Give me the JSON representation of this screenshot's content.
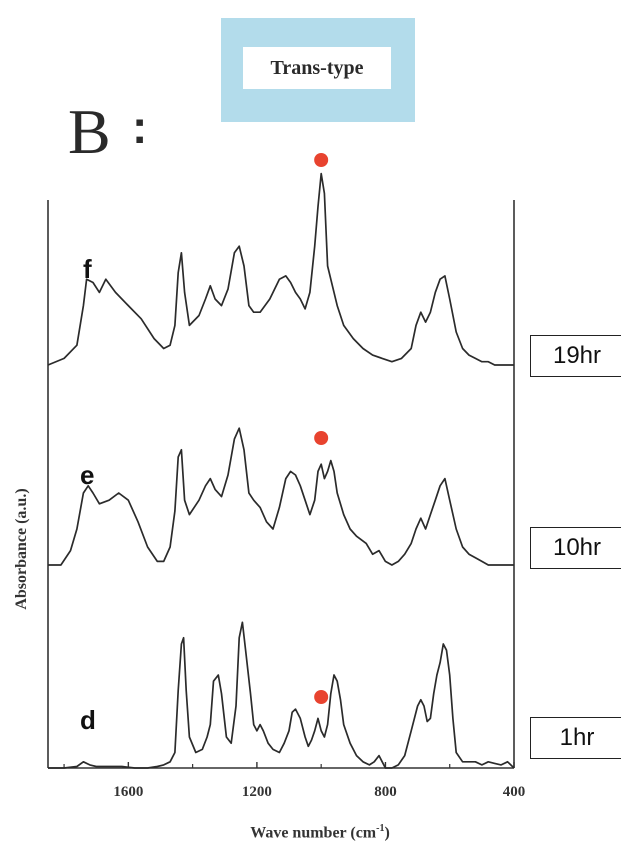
{
  "header": {
    "box_text": "Trans-type",
    "box_color": "#b3dceb",
    "panel_label": "B",
    "panel_colon": ":"
  },
  "chart_data": {
    "type": "line",
    "title": "",
    "xlabel_main": "Wave number (cm",
    "xlabel_sup": "-1",
    "xlabel_close": ")",
    "ylabel": "Absorbance (a.u.)",
    "xlim": [
      1850,
      400
    ],
    "x_reversed": true,
    "x_ticks": [
      1600,
      1200,
      800,
      400
    ],
    "x_tick_labels": [
      "1600",
      "1200",
      "800",
      "400"
    ],
    "grid": false,
    "marker_color": "#e8432f",
    "marker_x": 1000,
    "series": [
      {
        "label": "f",
        "time": "19hr",
        "x": [
          1850,
          1800,
          1760,
          1740,
          1730,
          1710,
          1690,
          1670,
          1640,
          1600,
          1560,
          1520,
          1490,
          1470,
          1455,
          1445,
          1435,
          1425,
          1410,
          1380,
          1360,
          1345,
          1330,
          1310,
          1290,
          1270,
          1255,
          1240,
          1225,
          1210,
          1190,
          1160,
          1130,
          1110,
          1095,
          1080,
          1065,
          1050,
          1035,
          1020,
          1010,
          1000,
          990,
          980,
          965,
          950,
          930,
          900,
          870,
          840,
          810,
          780,
          750,
          720,
          705,
          690,
          675,
          660,
          645,
          630,
          615,
          600,
          580,
          560,
          540,
          520,
          500,
          480,
          460,
          440,
          420,
          410,
          400
        ],
        "y": [
          0.0,
          0.02,
          0.06,
          0.18,
          0.26,
          0.25,
          0.22,
          0.26,
          0.22,
          0.18,
          0.14,
          0.08,
          0.05,
          0.06,
          0.12,
          0.28,
          0.34,
          0.22,
          0.12,
          0.15,
          0.2,
          0.24,
          0.2,
          0.18,
          0.23,
          0.34,
          0.36,
          0.3,
          0.18,
          0.16,
          0.16,
          0.2,
          0.26,
          0.27,
          0.25,
          0.22,
          0.2,
          0.17,
          0.22,
          0.36,
          0.48,
          0.58,
          0.52,
          0.3,
          0.24,
          0.18,
          0.12,
          0.08,
          0.05,
          0.03,
          0.02,
          0.01,
          0.02,
          0.05,
          0.12,
          0.16,
          0.13,
          0.16,
          0.22,
          0.26,
          0.27,
          0.2,
          0.1,
          0.05,
          0.03,
          0.02,
          0.01,
          0.01,
          0.0,
          0.0,
          0.0,
          0.0,
          0.0
        ]
      },
      {
        "label": "e",
        "time": "10hr",
        "x": [
          1850,
          1810,
          1780,
          1760,
          1740,
          1725,
          1710,
          1690,
          1660,
          1630,
          1600,
          1570,
          1540,
          1510,
          1490,
          1470,
          1455,
          1445,
          1435,
          1425,
          1410,
          1380,
          1360,
          1345,
          1330,
          1310,
          1290,
          1270,
          1255,
          1240,
          1225,
          1210,
          1190,
          1170,
          1150,
          1130,
          1110,
          1095,
          1080,
          1065,
          1050,
          1035,
          1020,
          1010,
          1000,
          990,
          980,
          970,
          960,
          950,
          930,
          910,
          890,
          860,
          840,
          820,
          800,
          780,
          760,
          740,
          720,
          705,
          690,
          675,
          660,
          645,
          630,
          615,
          600,
          580,
          560,
          540,
          520,
          500,
          480,
          460,
          440,
          420,
          400
        ],
        "y": [
          0.0,
          0.0,
          0.04,
          0.1,
          0.2,
          0.22,
          0.2,
          0.17,
          0.18,
          0.2,
          0.18,
          0.12,
          0.05,
          0.01,
          0.01,
          0.05,
          0.15,
          0.3,
          0.32,
          0.18,
          0.14,
          0.18,
          0.22,
          0.24,
          0.21,
          0.19,
          0.25,
          0.35,
          0.38,
          0.32,
          0.2,
          0.18,
          0.16,
          0.12,
          0.1,
          0.16,
          0.24,
          0.26,
          0.25,
          0.22,
          0.18,
          0.14,
          0.18,
          0.26,
          0.28,
          0.24,
          0.26,
          0.29,
          0.26,
          0.2,
          0.14,
          0.1,
          0.08,
          0.06,
          0.03,
          0.04,
          0.01,
          0.0,
          0.01,
          0.03,
          0.06,
          0.1,
          0.13,
          0.1,
          0.14,
          0.18,
          0.22,
          0.24,
          0.18,
          0.1,
          0.05,
          0.03,
          0.02,
          0.01,
          0.0,
          0.0,
          0.0,
          0.0,
          0.0
        ]
      },
      {
        "label": "d",
        "time": "1hr",
        "x": [
          1850,
          1800,
          1760,
          1740,
          1720,
          1700,
          1660,
          1620,
          1580,
          1540,
          1510,
          1490,
          1470,
          1455,
          1445,
          1435,
          1428,
          1420,
          1410,
          1390,
          1370,
          1355,
          1345,
          1335,
          1320,
          1310,
          1295,
          1280,
          1265,
          1255,
          1245,
          1235,
          1220,
          1210,
          1200,
          1190,
          1180,
          1165,
          1150,
          1130,
          1115,
          1100,
          1090,
          1080,
          1065,
          1050,
          1040,
          1030,
          1020,
          1010,
          1000,
          990,
          980,
          970,
          960,
          950,
          940,
          930,
          910,
          890,
          870,
          850,
          835,
          820,
          810,
          800,
          790,
          780,
          760,
          740,
          720,
          700,
          690,
          680,
          670,
          660,
          650,
          640,
          630,
          620,
          610,
          600,
          590,
          580,
          560,
          540,
          520,
          500,
          480,
          460,
          440,
          420,
          400
        ],
        "y": [
          0.0,
          0.0,
          0.005,
          0.02,
          0.01,
          0.005,
          0.005,
          0.005,
          0.0,
          0.0,
          0.005,
          0.01,
          0.02,
          0.05,
          0.25,
          0.4,
          0.42,
          0.25,
          0.1,
          0.05,
          0.06,
          0.1,
          0.14,
          0.28,
          0.3,
          0.24,
          0.1,
          0.08,
          0.2,
          0.42,
          0.47,
          0.38,
          0.24,
          0.14,
          0.12,
          0.14,
          0.12,
          0.08,
          0.06,
          0.05,
          0.08,
          0.12,
          0.18,
          0.19,
          0.16,
          0.1,
          0.07,
          0.09,
          0.12,
          0.16,
          0.12,
          0.1,
          0.14,
          0.24,
          0.3,
          0.28,
          0.22,
          0.14,
          0.08,
          0.04,
          0.02,
          0.01,
          0.02,
          0.04,
          0.02,
          0.0,
          0.0,
          0.0,
          0.01,
          0.04,
          0.12,
          0.2,
          0.22,
          0.2,
          0.15,
          0.16,
          0.24,
          0.3,
          0.34,
          0.4,
          0.38,
          0.3,
          0.16,
          0.05,
          0.02,
          0.02,
          0.02,
          0.01,
          0.02,
          0.015,
          0.01,
          0.02,
          0.0
        ]
      }
    ]
  }
}
